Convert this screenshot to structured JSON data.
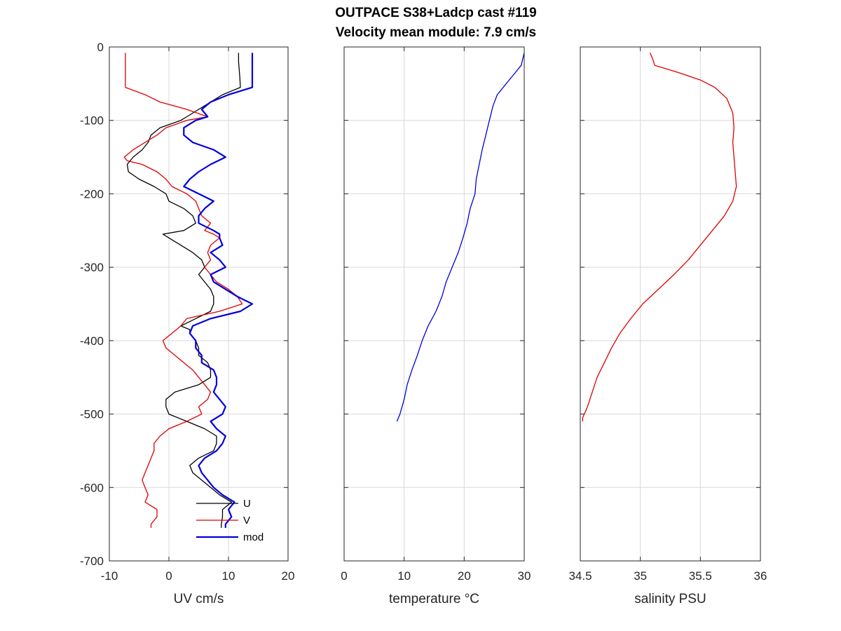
{
  "title": {
    "line1": "OUTPACE S38+Ladcp cast #119",
    "line2": "Velocity mean module:  7.9 cm/s"
  },
  "chart_data": [
    {
      "type": "line",
      "xlabel": "UV cm/s",
      "ylabel": "",
      "xlim": [
        -10,
        20
      ],
      "ylim": [
        -700,
        0
      ],
      "xticks": [
        -10,
        0,
        10,
        20
      ],
      "xtick_labels": [
        "-10",
        "0",
        "10",
        "20"
      ],
      "yticks": [
        0,
        -100,
        -200,
        -300,
        -400,
        -500,
        -600,
        -700
      ],
      "ytick_labels": [
        "0",
        "-100",
        "-200",
        "-300",
        "-400",
        "-500",
        "-600",
        "-700"
      ],
      "grid": true,
      "legend": "bottom-left",
      "series": [
        {
          "name": "U",
          "color": "#000000",
          "width": 1.3,
          "y": [
            -8,
            -20,
            -40,
            -55,
            -65,
            -75,
            -85,
            -95,
            -100,
            -110,
            -120,
            -130,
            -140,
            -150,
            -160,
            -170,
            -180,
            -190,
            -200,
            -210,
            -220,
            -230,
            -240,
            -250,
            -255,
            -260,
            -270,
            -280,
            -290,
            -300,
            -310,
            -320,
            -330,
            -340,
            -350,
            -360,
            -370,
            -380,
            -385,
            -390,
            -400,
            -410,
            -420,
            -430,
            -440,
            -450,
            -460,
            -470,
            -480,
            -490,
            -500,
            -510,
            -520,
            -530,
            -540,
            -550,
            -560,
            -570,
            -580,
            -590,
            -600,
            -610,
            -620,
            -630,
            -640,
            -650,
            -655
          ],
          "values": [
            11.7,
            11.7,
            11.9,
            12.0,
            9.0,
            7.0,
            5.0,
            3.0,
            2.0,
            -1.5,
            -3.0,
            -3.5,
            -4.5,
            -6.0,
            -7.0,
            -6.8,
            -5.0,
            -2.5,
            -0.5,
            0.0,
            2.5,
            4.0,
            4.5,
            2.5,
            -1.0,
            0.0,
            2.0,
            4.0,
            5.5,
            6.0,
            5.0,
            6.0,
            7.0,
            7.5,
            7.5,
            7.0,
            4.5,
            2.0,
            3.5,
            3.5,
            4.5,
            5.0,
            5.0,
            6.5,
            7.0,
            7.0,
            5.0,
            1.0,
            -0.5,
            -0.5,
            0.0,
            3.0,
            6.0,
            8.0,
            8.0,
            7.5,
            5.0,
            3.5,
            4.0,
            5.5,
            7.0,
            8.5,
            10.5,
            9.0,
            9.0,
            8.8,
            8.8
          ]
        },
        {
          "name": "V",
          "color": "#dd0000",
          "width": 1.3,
          "y": [
            -8,
            -20,
            -40,
            -55,
            -65,
            -75,
            -85,
            -95,
            -100,
            -110,
            -120,
            -130,
            -140,
            -150,
            -155,
            -160,
            -170,
            -180,
            -190,
            -200,
            -210,
            -220,
            -230,
            -240,
            -250,
            -255,
            -260,
            -270,
            -280,
            -290,
            -300,
            -310,
            -320,
            -330,
            -340,
            -350,
            -360,
            -370,
            -380,
            -390,
            -400,
            -410,
            -420,
            -430,
            -440,
            -450,
            -460,
            -470,
            -480,
            -490,
            -500,
            -510,
            -520,
            -530,
            -540,
            -550,
            -560,
            -570,
            -580,
            -590,
            -600,
            -610,
            -620,
            -630,
            -640,
            -650,
            -655
          ],
          "values": [
            -7.3,
            -7.3,
            -7.3,
            -7.3,
            -4.0,
            -1.5,
            3.0,
            6.5,
            3.0,
            -0.5,
            -2.0,
            -4.0,
            -6.0,
            -7.5,
            -7.0,
            -4.5,
            -2.0,
            -0.5,
            0.5,
            3.0,
            4.5,
            5.0,
            5.5,
            7.0,
            6.0,
            7.5,
            8.5,
            7.0,
            6.5,
            7.0,
            6.0,
            7.0,
            8.0,
            10.0,
            11.5,
            12.3,
            8.5,
            3.0,
            2.0,
            0.5,
            -1.0,
            -0.5,
            1.0,
            2.5,
            4.0,
            5.0,
            6.0,
            7.0,
            6.5,
            5.0,
            5.5,
            3.0,
            0.0,
            -1.5,
            -2.5,
            -2.5,
            -3.0,
            -3.5,
            -4.0,
            -4.5,
            -4.0,
            -3.5,
            -4.0,
            -2.0,
            -2.0,
            -3.0,
            -3.0
          ]
        },
        {
          "name": "mod",
          "color": "#0000dd",
          "width": 2.2,
          "y": [
            -8,
            -20,
            -40,
            -55,
            -65,
            -75,
            -85,
            -95,
            -100,
            -110,
            -120,
            -130,
            -140,
            -150,
            -160,
            -170,
            -180,
            -190,
            -200,
            -210,
            -220,
            -230,
            -240,
            -250,
            -255,
            -260,
            -270,
            -280,
            -290,
            -300,
            -310,
            -320,
            -330,
            -340,
            -350,
            -360,
            -370,
            -380,
            -390,
            -400,
            -410,
            -420,
            -430,
            -440,
            -450,
            -460,
            -470,
            -480,
            -490,
            -500,
            -510,
            -520,
            -530,
            -540,
            -550,
            -560,
            -570,
            -580,
            -590,
            -600,
            -610,
            -620,
            -630,
            -640,
            -650,
            -655
          ],
          "values": [
            14.0,
            14.0,
            14.0,
            14.0,
            10.0,
            7.0,
            5.5,
            6.5,
            4.5,
            2.5,
            2.5,
            4.0,
            7.5,
            9.5,
            7.0,
            5.0,
            3.5,
            2.5,
            5.0,
            7.5,
            6.0,
            5.0,
            5.0,
            7.5,
            8.5,
            8.5,
            9.0,
            7.0,
            8.5,
            9.5,
            7.0,
            7.5,
            9.5,
            11.5,
            14.0,
            12.0,
            7.0,
            4.0,
            3.5,
            4.5,
            4.5,
            5.5,
            5.5,
            7.5,
            8.0,
            8.0,
            7.5,
            8.5,
            9.5,
            9.0,
            7.0,
            8.0,
            9.5,
            9.0,
            8.0,
            6.0,
            5.0,
            5.5,
            6.5,
            7.5,
            9.0,
            11.0,
            10.0,
            10.5,
            9.5,
            9.5
          ]
        }
      ]
    },
    {
      "type": "line",
      "xlabel": "temperature °C",
      "ylabel": "",
      "xlim": [
        0,
        30
      ],
      "ylim": [
        -700,
        0
      ],
      "xticks": [
        0,
        10,
        20,
        30
      ],
      "xtick_labels": [
        "0",
        "10",
        "20",
        "30"
      ],
      "yticks": [
        0,
        -100,
        -200,
        -300,
        -400,
        -500,
        -600,
        -700
      ],
      "grid": true,
      "series": [
        {
          "color": "#0000dd",
          "width": 1.3,
          "y": [
            -8,
            -25,
            -40,
            -55,
            -65,
            -80,
            -100,
            -120,
            -140,
            -160,
            -180,
            -200,
            -220,
            -240,
            -260,
            -280,
            -300,
            -320,
            -340,
            -360,
            -380,
            -400,
            -420,
            -440,
            -460,
            -480,
            -500,
            -510
          ],
          "values": [
            30.0,
            29.5,
            28.0,
            26.5,
            25.5,
            24.8,
            24.2,
            23.6,
            23.0,
            22.5,
            22.0,
            21.8,
            21.0,
            20.5,
            19.8,
            19.0,
            18.0,
            17.0,
            16.3,
            15.3,
            14.0,
            13.0,
            12.2,
            11.3,
            10.5,
            10.0,
            9.3,
            8.8
          ]
        }
      ]
    },
    {
      "type": "line",
      "xlabel": "salinity PSU",
      "ylabel": "",
      "xlim": [
        34.5,
        36
      ],
      "ylim": [
        -700,
        0
      ],
      "xticks": [
        34.5,
        35,
        35.5,
        36
      ],
      "xtick_labels": [
        "34.5",
        "35",
        "35.5",
        "36"
      ],
      "yticks": [
        0,
        -100,
        -200,
        -300,
        -400,
        -500,
        -600,
        -700
      ],
      "grid": true,
      "series": [
        {
          "color": "#dd0000",
          "width": 1.3,
          "y": [
            -8,
            -15,
            -25,
            -30,
            -35,
            -45,
            -55,
            -70,
            -90,
            -110,
            -130,
            -150,
            -170,
            -190,
            -210,
            -230,
            -250,
            -270,
            -290,
            -310,
            -330,
            -350,
            -370,
            -390,
            -410,
            -430,
            -450,
            -470,
            -490,
            -505,
            -510
          ],
          "values": [
            35.08,
            35.1,
            35.12,
            35.22,
            35.32,
            35.5,
            35.62,
            35.72,
            35.77,
            35.78,
            35.77,
            35.78,
            35.79,
            35.8,
            35.77,
            35.7,
            35.6,
            35.5,
            35.4,
            35.28,
            35.15,
            35.02,
            34.92,
            34.83,
            34.76,
            34.7,
            34.64,
            34.6,
            34.56,
            34.52,
            34.52
          ]
        }
      ]
    }
  ]
}
